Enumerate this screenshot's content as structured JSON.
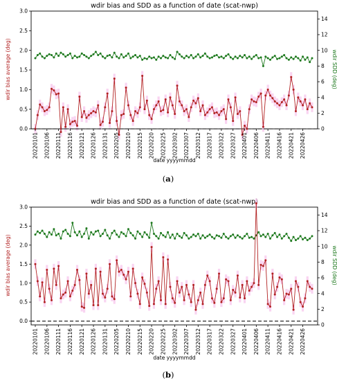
{
  "panels": [
    {
      "caption_letter": "a",
      "colors": {
        "bias": "#b22222",
        "sdd": "#1f7a1f",
        "band": "#f7c6ec",
        "zero_line": "#000000"
      },
      "chart_data": {
        "type": "line",
        "title": "wdir bias and SDD as a function of date (scat-nwp)",
        "xlabel": "date yyyymmdd",
        "ylabel_left": "wdir bias average (deg)",
        "ylabel_right": "wdir SDD (deg)",
        "ylim_left": [
          0,
          3.0
        ],
        "ylim_right": [
          0,
          15
        ],
        "yticks_left": [
          "0.0",
          "0.5",
          "1.0",
          "1.5",
          "2.0",
          "2.5",
          "3.0"
        ],
        "yticks_right": [
          "0",
          "2",
          "4",
          "6",
          "8",
          "10",
          "12",
          "14"
        ],
        "x_tick_labels": [
          "20220101",
          "20220106",
          "20220111",
          "20220116",
          "20220121",
          "20220126",
          "20220131",
          "20220205",
          "20220210",
          "20220215",
          "20220220",
          "20220225",
          "20220302",
          "20220307",
          "20220312",
          "20220317",
          "20220322",
          "20220327",
          "20220401",
          "20220406",
          "20220411",
          "20220416",
          "20220421",
          "20220426"
        ],
        "grid": false,
        "x_count": 120,
        "series": [
          {
            "name": "",
            "axis": "left",
            "values": [
              0.0,
              0.35,
              0.62,
              0.55,
              0.45,
              0.48,
              0.55,
              1.02,
              0.98,
              0.88,
              0.9,
              -0.08,
              0.55,
              0.05,
              0.5,
              0.12,
              0.18,
              0.2,
              0.08,
              0.82,
              0.3,
              0.45,
              0.28,
              0.35,
              0.4,
              0.45,
              0.42,
              0.6,
              0.1,
              0.18,
              0.55,
              0.9,
              0.15,
              0.45,
              1.28,
              0.2,
              -0.15,
              0.35,
              0.38,
              1.05,
              0.6,
              0.35,
              0.2,
              0.45,
              0.4,
              0.55,
              1.35,
              0.5,
              0.72,
              0.35,
              0.25,
              0.5,
              0.6,
              0.7,
              0.45,
              0.48,
              0.75,
              0.42,
              0.8,
              0.6,
              0.38,
              1.1,
              0.7,
              0.6,
              0.45,
              0.5,
              0.3,
              0.55,
              0.72,
              0.65,
              0.78,
              0.45,
              0.6,
              0.35,
              0.42,
              0.5,
              0.55,
              0.4,
              0.42,
              0.35,
              0.45,
              0.5,
              0.25,
              0.75,
              0.55,
              0.2,
              0.8,
              0.38,
              0.45,
              -0.15,
              0.08,
              0.0,
              0.5,
              0.75,
              0.7,
              0.68,
              0.82,
              0.9,
              0.05,
              0.85,
              1.0,
              0.85,
              0.78,
              0.7,
              0.65,
              0.6,
              0.68,
              0.75,
              0.6,
              0.85,
              1.32,
              1.0,
              0.45,
              0.8,
              0.7,
              0.6,
              0.75,
              0.5,
              0.65,
              0.55
            ]
          },
          {
            "name": "",
            "axis": "right",
            "values": [
              9.0,
              9.4,
              9.6,
              9.2,
              9.0,
              9.3,
              9.5,
              9.4,
              9.1,
              9.6,
              9.3,
              9.7,
              9.5,
              9.2,
              9.4,
              9.6,
              9.0,
              9.3,
              9.1,
              9.2,
              9.6,
              9.4,
              9.2,
              9.0,
              9.3,
              9.5,
              9.8,
              9.4,
              9.6,
              9.2,
              9.0,
              9.3,
              9.4,
              9.1,
              9.7,
              9.2,
              9.0,
              9.5,
              9.1,
              9.3,
              9.6,
              9.0,
              9.2,
              9.4,
              9.1,
              9.3,
              8.8,
              9.0,
              8.9,
              9.2,
              9.0,
              9.1,
              8.8,
              9.2,
              9.0,
              9.3,
              9.1,
              9.0,
              9.4,
              9.1,
              8.9,
              9.8,
              9.5,
              9.2,
              9.0,
              9.3,
              9.1,
              9.4,
              9.0,
              9.2,
              9.5,
              9.1,
              9.3,
              9.6,
              9.2,
              9.0,
              9.1,
              9.3,
              9.4,
              9.1,
              9.2,
              9.0,
              9.3,
              9.5,
              9.1,
              8.9,
              9.2,
              9.0,
              9.3,
              9.1,
              9.4,
              9.0,
              9.2,
              8.9,
              9.2,
              9.4,
              9.0,
              9.1,
              8.0,
              9.2,
              9.0,
              8.8,
              9.1,
              9.3,
              8.9,
              9.0,
              9.2,
              9.4,
              9.0,
              8.8,
              9.1,
              8.9,
              9.2,
              9.0,
              8.7,
              9.2,
              8.8,
              9.1,
              8.5,
              9.0
            ]
          }
        ],
        "zero_line": 0
      }
    },
    {
      "caption_letter": "b",
      "colors": {
        "bias": "#b22222",
        "sdd": "#1f7a1f",
        "band": "#f7c6ec",
        "zero_line": "#000000"
      },
      "chart_data": {
        "type": "line",
        "title": "wdir bias and SDD as a function of date (scat-nwp)",
        "xlabel": "date yyyymmdd",
        "ylabel_left": "wdir bias average (deg)",
        "ylabel_right": "wdir SDD (deg)",
        "ylim_left": [
          -0.1,
          3.0
        ],
        "ylim_right": [
          0,
          15
        ],
        "yticks_left": [
          "0.0",
          "0.5",
          "1.0",
          "1.5",
          "2.0",
          "2.5",
          "3.0"
        ],
        "yticks_right": [
          "0",
          "2",
          "4",
          "6",
          "8",
          "10",
          "12",
          "14"
        ],
        "x_tick_labels": [
          "20220101",
          "20220106",
          "20220111",
          "20220116",
          "20220121",
          "20220126",
          "20220131",
          "20220205",
          "20220210",
          "20220215",
          "20220220",
          "20220225",
          "20220302",
          "20220307",
          "20220312",
          "20220317",
          "20220322",
          "20220327",
          "20220401",
          "20220406",
          "20220411",
          "20220416",
          "20220421",
          "20220426"
        ],
        "grid": false,
        "x_count": 120,
        "series": [
          {
            "name": "",
            "axis": "left",
            "values": [
              1.5,
              1.05,
              0.65,
              1.02,
              0.5,
              1.35,
              0.85,
              0.55,
              1.38,
              0.95,
              1.45,
              0.6,
              0.7,
              0.75,
              1.05,
              0.65,
              0.8,
              0.95,
              1.35,
              1.08,
              0.38,
              0.35,
              1.25,
              0.72,
              0.95,
              0.42,
              1.38,
              0.42,
              1.3,
              0.72,
              0.62,
              0.85,
              1.5,
              0.65,
              0.58,
              1.6,
              1.3,
              1.35,
              1.22,
              1.1,
              1.3,
              0.65,
              1.38,
              1.0,
              0.72,
              0.45,
              1.15,
              0.98,
              0.75,
              0.4,
              1.95,
              0.45,
              0.85,
              1.05,
              0.55,
              1.68,
              0.45,
              1.62,
              0.9,
              0.6,
              0.48,
              1.05,
              0.75,
              0.9,
              0.55,
              0.95,
              0.7,
              0.5,
              0.95,
              0.3,
              0.55,
              0.75,
              0.45,
              0.95,
              1.2,
              1.05,
              0.6,
              0.48,
              0.85,
              1.25,
              0.5,
              0.6,
              1.1,
              1.05,
              0.55,
              0.82,
              0.75,
              1.2,
              0.62,
              0.95,
              0.6,
              1.05,
              0.8,
              0.9,
              1.0,
              3.1,
              0.95,
              1.48,
              1.45,
              1.6,
              0.45,
              0.38,
              1.25,
              0.7,
              0.9,
              1.15,
              1.1,
              0.55,
              0.72,
              0.7,
              0.85,
              0.3,
              1.05,
              0.9,
              0.5,
              0.38,
              0.6,
              1.05,
              0.9,
              0.85
            ]
          },
          {
            "name": "",
            "axis": "right",
            "values": [
              11.5,
              11.9,
              11.7,
              12.0,
              11.6,
              11.2,
              11.8,
              11.5,
              12.2,
              11.4,
              11.6,
              11.0,
              11.9,
              12.1,
              11.6,
              11.3,
              13.0,
              11.8,
              11.4,
              11.9,
              11.2,
              11.6,
              12.3,
              11.0,
              11.8,
              11.5,
              11.9,
              12.0,
              11.3,
              11.6,
              12.1,
              11.4,
              11.0,
              11.7,
              12.0,
              11.5,
              11.2,
              11.8,
              11.6,
              11.3,
              12.2,
              11.7,
              11.4,
              11.0,
              11.9,
              11.6,
              11.2,
              11.8,
              11.5,
              11.1,
              13.0,
              11.6,
              11.3,
              11.0,
              11.7,
              11.4,
              11.2,
              11.8,
              11.1,
              11.5,
              11.0,
              11.6,
              11.3,
              11.1,
              11.7,
              11.4,
              11.0,
              11.2,
              11.5,
              11.3,
              11.6,
              11.0,
              11.4,
              11.1,
              11.3,
              11.5,
              11.2,
              11.0,
              11.4,
              11.3,
              11.1,
              11.6,
              11.2,
              11.0,
              11.3,
              11.5,
              11.1,
              11.4,
              11.2,
              11.0,
              11.3,
              11.6,
              11.1,
              11.2,
              11.0,
              11.4,
              11.8,
              11.3,
              11.5,
              11.2,
              11.6,
              11.0,
              11.4,
              11.7,
              11.2,
              11.5,
              11.0,
              11.3,
              11.6,
              11.1,
              10.7,
              11.2,
              10.8,
              11.0,
              11.3,
              10.9,
              11.1,
              10.8,
              11.0,
              11.3
            ]
          }
        ],
        "zero_line": 0
      }
    }
  ]
}
